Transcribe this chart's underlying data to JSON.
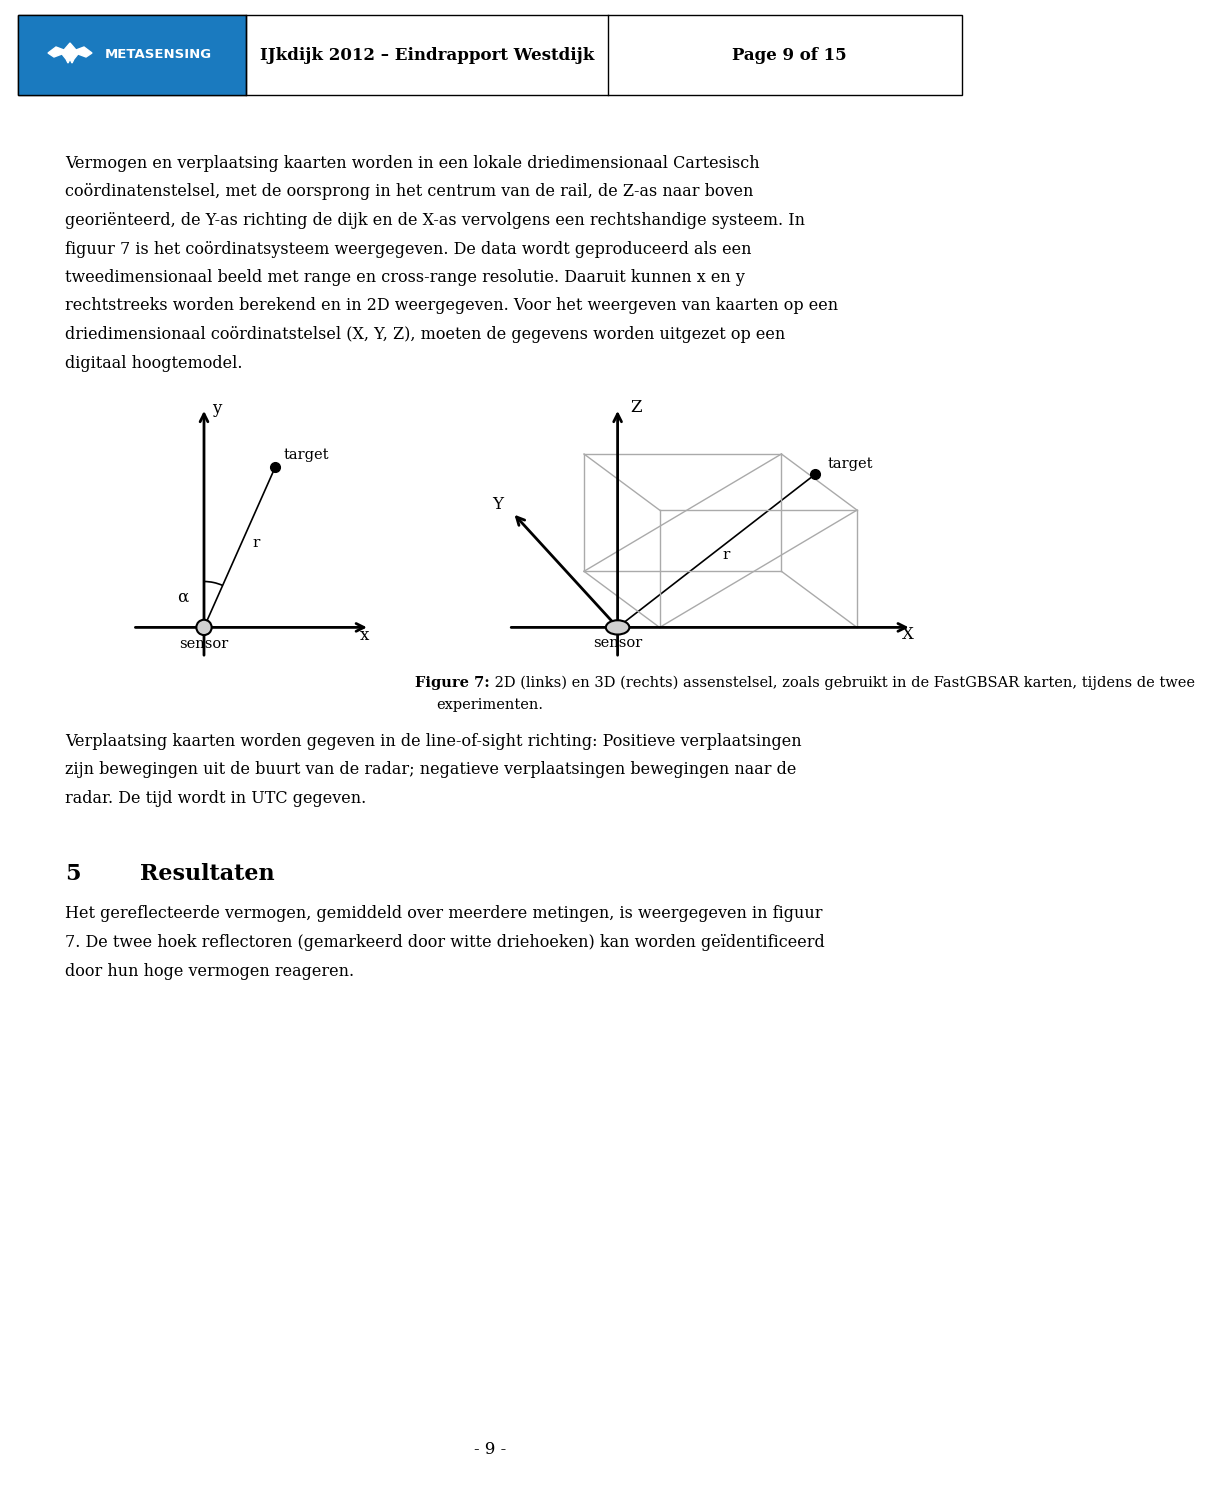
{
  "page_bg": "#ffffff",
  "metasensing_bg": "#1a7abf",
  "title_text": "IJkdijk 2012 – Eindrapport Westdijk",
  "page_text": "Page 9 of 15",
  "body_lines_1": [
    "Vermogen en verplaatsing kaarten worden in een lokale driedimensionaal Cartesisch",
    "coördinatenstelsel, met de oorsprong in het centrum van de rail, de Z-as naar boven",
    "georiënteerd, de Y-as richting de dijk en de X-as vervolgens een rechtshandige systeem. In",
    "figuur 7 is het coördinatsysteem weergegeven. De data wordt geproduceerd als een",
    "tweedimensionaal beeld met range en cross-range resolutie. Daaruit kunnen x en y",
    "rechtstreeks worden berekend en in 2D weergegeven. Voor het weergeven van kaarten op een",
    "driedimensionaal coördinatstelsel (X, Y, Z), moeten de gegevens worden uitgezet op een",
    "digitaal hoogtemodel."
  ],
  "figure_caption_bold": "Figure 7:",
  "figure_caption_rest": " 2D (links) en 3D (rechts) assenstelsel, zoals gebruikt in de FastGBSAR karten, tijdens de twee",
  "figure_caption_line2": "experimenten.",
  "body_lines_2": [
    "Verplaatsing kaarten worden gegeven in de line-of-sight richting: Positieve verplaatsingen",
    "zijn bewegingen uit de buurt van de radar; negatieve verplaatsingen bewegingen naar de",
    "radar. De tijd wordt in UTC gegeven."
  ],
  "section_number": "5",
  "section_title": "Resultaten",
  "body_lines_3": [
    "Het gereflecteerde vermogen, gemiddeld over meerdere metingen, is weergegeven in figuur",
    "7. De twee hoek reflectoren (gemarkeerd door witte driehoeken) kan worden geïdentificeerd",
    "door hun hoge vermogen reageren."
  ],
  "page_number": "- 9 -",
  "font_family": "serif",
  "text_color": "#000000",
  "body_fontsize": 11.5,
  "diagram_light_color": "#aaaaaa"
}
